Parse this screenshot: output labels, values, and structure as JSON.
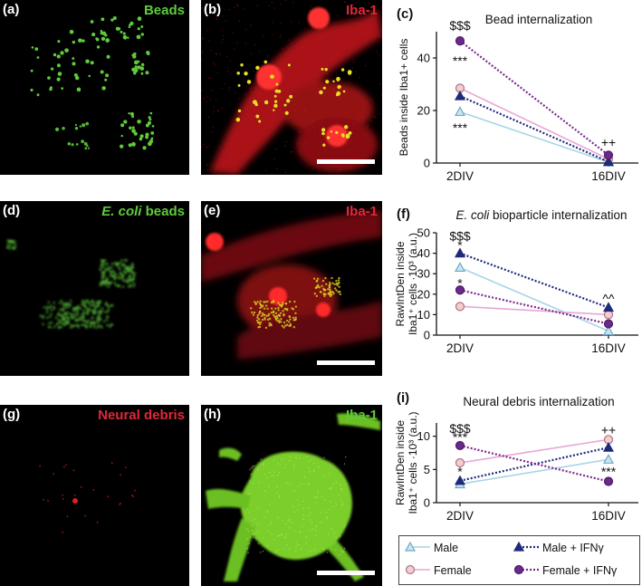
{
  "micrographs": [
    {
      "id": "a",
      "label": "(a)",
      "title": "Beads",
      "title_color": "#5fcb3c",
      "italic_part": "",
      "rest": "Beads",
      "scalebar": false,
      "style": "beads"
    },
    {
      "id": "b",
      "label": "(b)",
      "title": "Iba-1",
      "title_color": "#e0283a",
      "italic_part": "",
      "rest": "Iba-1",
      "scalebar": true,
      "style": "iba_beads"
    },
    {
      "id": "d",
      "label": "(d)",
      "title": "E. coli beads",
      "title_color": "#5fcb3c",
      "italic_part": "E. coli",
      "rest": " beads",
      "scalebar": false,
      "style": "ecoli"
    },
    {
      "id": "e",
      "label": "(e)",
      "title": "Iba-1",
      "title_color": "#e0283a",
      "italic_part": "",
      "rest": "Iba-1",
      "scalebar": true,
      "style": "iba_ecoli"
    },
    {
      "id": "g",
      "label": "(g)",
      "title": "Neural debris",
      "title_color": "#e0283a",
      "italic_part": "",
      "rest": "Neural debris",
      "scalebar": false,
      "style": "debris"
    },
    {
      "id": "h",
      "label": "(h)",
      "title": "Iba-1",
      "title_color": "#5fcb3c",
      "italic_part": "",
      "rest": "Iba-1",
      "scalebar": true,
      "style": "iba_debris"
    }
  ],
  "chart_data": [
    {
      "id": "c",
      "label": "(c)",
      "type": "line",
      "title": "Bead internalization",
      "title_italic": "",
      "ylabel_lines": [
        "Beads inside Iba1+ cells"
      ],
      "categories": [
        "2DIV",
        "16DIV"
      ],
      "ylim": [
        0,
        50
      ],
      "yticks": [
        0,
        20,
        40
      ],
      "series": [
        {
          "name": "Male",
          "values": [
            19.5,
            0.3
          ]
        },
        {
          "name": "Female",
          "values": [
            28.5,
            1.5
          ]
        },
        {
          "name": "Male + IFNγ",
          "values": [
            25.5,
            0.5
          ]
        },
        {
          "name": "Female + IFNγ",
          "values": [
            46.5,
            3.0
          ]
        }
      ],
      "annotations": [
        {
          "text": "$$$",
          "cat": 0,
          "value": 52.5
        },
        {
          "text": "***",
          "cat": 0,
          "value": 39.0
        },
        {
          "text": "***",
          "cat": 0,
          "value": 13.5
        },
        {
          "text": "++",
          "cat": 1,
          "value": 8.0
        }
      ]
    },
    {
      "id": "f",
      "label": "(f)",
      "type": "line",
      "title": " bioparticle internalization",
      "title_italic": "E. coli",
      "ylabel_lines": [
        "RawIntDen inside",
        "Iba1⁺ cells ·10³ (a.u.)"
      ],
      "categories": [
        "2DIV",
        "16DIV"
      ],
      "ylim": [
        0,
        50
      ],
      "yticks": [
        0,
        10,
        20,
        30,
        40,
        50
      ],
      "series": [
        {
          "name": "Male",
          "values": [
            33.0,
            2.0
          ]
        },
        {
          "name": "Female",
          "values": [
            14.0,
            10.0
          ]
        },
        {
          "name": "Male + IFNγ",
          "values": [
            40.0,
            13.5
          ]
        },
        {
          "name": "Female + IFNγ",
          "values": [
            22.0,
            5.5
          ]
        }
      ],
      "annotations": [
        {
          "text": "$$$",
          "cat": 0,
          "value": 48.5
        },
        {
          "text": "*",
          "cat": 0,
          "value": 44.0
        },
        {
          "text": "*",
          "cat": 0,
          "value": 25.5
        },
        {
          "text": "^^",
          "cat": 1,
          "value": 18.0
        }
      ]
    },
    {
      "id": "i",
      "label": "(i)",
      "type": "line",
      "title": "Neural debris internalization",
      "title_italic": "",
      "ylabel_lines": [
        "RawIntDen inside",
        "Iba1⁺ cells ·10³ (a.u.)"
      ],
      "categories": [
        "2DIV",
        "16DIV"
      ],
      "ylim": [
        0,
        12
      ],
      "yticks": [
        0,
        5,
        10
      ],
      "series": [
        {
          "name": "Male",
          "values": [
            2.8,
            6.5
          ]
        },
        {
          "name": "Female",
          "values": [
            6.0,
            9.5
          ]
        },
        {
          "name": "Male + IFNγ",
          "values": [
            3.3,
            8.3
          ]
        },
        {
          "name": "Female + IFNγ",
          "values": [
            8.6,
            3.2
          ]
        }
      ],
      "annotations": [
        {
          "text": "$$$",
          "cat": 0,
          "value": 11.2
        },
        {
          "text": "***",
          "cat": 0,
          "value": 9.9
        },
        {
          "text": "*",
          "cat": 0,
          "value": 4.7
        },
        {
          "text": "++",
          "cat": 1,
          "value": 11.0
        },
        {
          "text": "***",
          "cat": 1,
          "value": 4.7
        }
      ]
    }
  ],
  "legend": {
    "items": [
      {
        "name": "Male",
        "marker": "triangle-open",
        "line": "solid",
        "color": "#a8d4e6",
        "fill": "#a8d4e6"
      },
      {
        "name": "Male + IFNγ",
        "marker": "triangle-filled",
        "line": "dotted",
        "color": "#1f2a7a",
        "fill": "#1f2a7a"
      },
      {
        "name": "Female",
        "marker": "circle-open",
        "line": "solid",
        "color": "#e8a7d4",
        "fill": "#f2d0d0"
      },
      {
        "name": "Female + IFNγ",
        "marker": "circle-filled",
        "line": "dotted",
        "color": "#7a2a8e",
        "fill": "#6a2a8a"
      }
    ]
  },
  "colors": {
    "male": "#a8d4e6",
    "male_marker": "#6fa9c4",
    "female": "#e8a7d4",
    "female_marker_fill": "#f2cfcf",
    "male_ifn": "#1f2a7a",
    "female_ifn": "#7a2a8e",
    "bead_green": "#5fcb3c",
    "iba_red": "#e0283a"
  }
}
